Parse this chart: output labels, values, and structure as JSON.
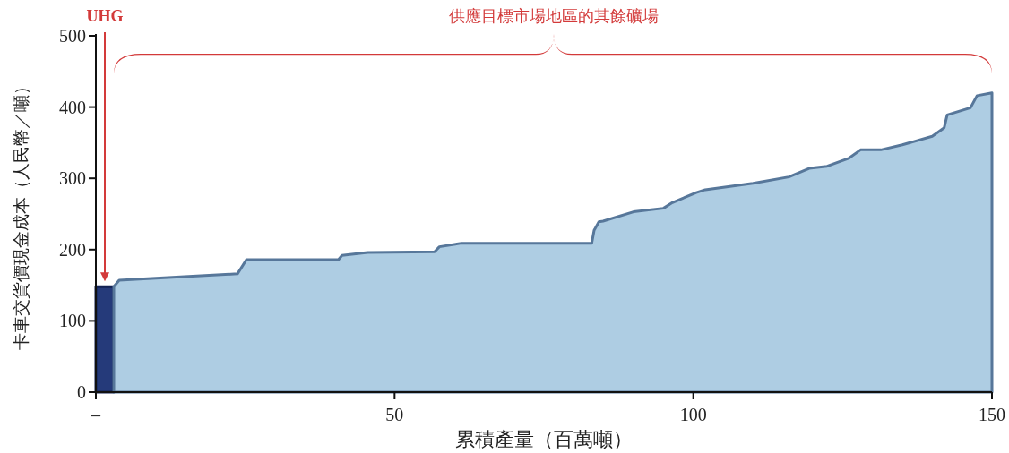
{
  "chart_data": {
    "type": "area",
    "xlabel": "累積產量（百萬噸）",
    "ylabel": "卡車交貨價現金成本（人民幣／噸）",
    "xlim": [
      0,
      150
    ],
    "ylim": [
      0,
      500
    ],
    "xticks": [
      {
        "value": 0,
        "label": "–"
      },
      50,
      100,
      150
    ],
    "yticks": [
      0,
      100,
      200,
      300,
      400,
      500
    ],
    "series": [
      {
        "color": "#253a7a",
        "x": [
          0,
          3
        ],
        "values": [
          148,
          148
        ]
      },
      {
        "color": "#aecde3",
        "x": [
          3,
          3.9,
          23.7,
          25.2,
          40.6,
          41.2,
          45.5,
          56.7,
          57.5,
          61.2,
          83,
          83.4,
          84.2,
          84.9,
          90,
          95,
          96.5,
          100.5,
          102,
          110,
          116,
          119.4,
          122.4,
          126,
          128,
          131.4,
          135,
          140,
          142,
          142.5,
          146.4,
          147.5,
          150
        ],
        "values": [
          148,
          157,
          166,
          186,
          186,
          192,
          196,
          197,
          204,
          209,
          209,
          227,
          239,
          240,
          253,
          258,
          266,
          280,
          284,
          293,
          302,
          314,
          317,
          328,
          340,
          340,
          347,
          359,
          371,
          389,
          399,
          416,
          420
        ]
      }
    ],
    "annotations": [
      "UHG",
      "供應目標市場地區的其餘礦場"
    ]
  }
}
